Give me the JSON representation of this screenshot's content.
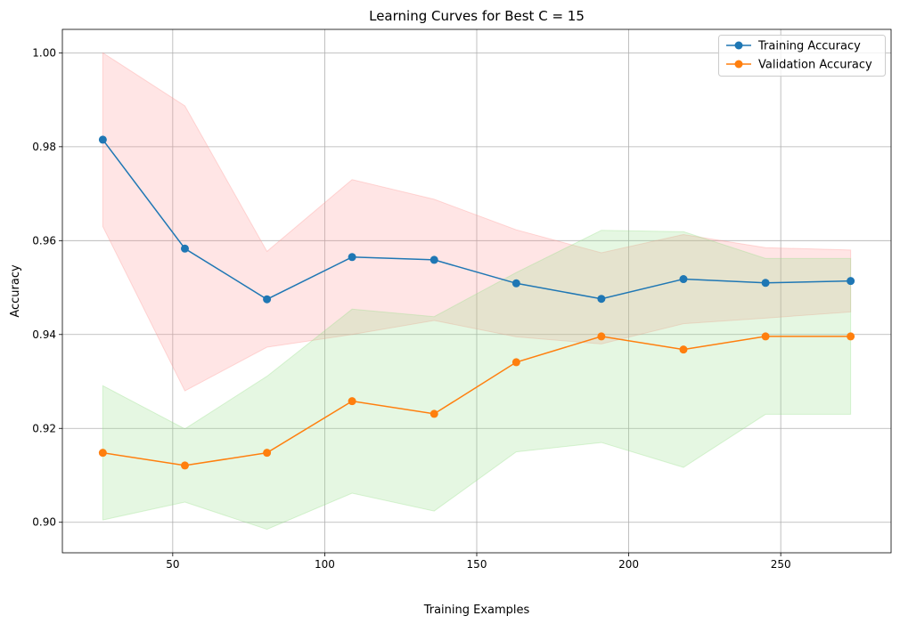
{
  "chart_data": {
    "type": "line",
    "title": "Learning Curves for Best C = 15",
    "xlabel": "Training Examples",
    "ylabel": "Accuracy",
    "xlim": [
      13.7,
      286.3
    ],
    "ylim": [
      0.8935,
      1.005
    ],
    "xticks": [
      50,
      100,
      150,
      200,
      250
    ],
    "xtick_labels": [
      "50",
      "100",
      "150",
      "200",
      "250"
    ],
    "yticks": [
      0.9,
      0.92,
      0.94,
      0.96,
      0.98,
      1.0
    ],
    "ytick_labels": [
      "0.90",
      "0.92",
      "0.94",
      "0.96",
      "0.98",
      "1.00"
    ],
    "grid": true,
    "legend_position": "top-right",
    "x": [
      27,
      54,
      81,
      109,
      136,
      163,
      191,
      218,
      245,
      273
    ],
    "series": [
      {
        "name": "Training Accuracy",
        "color": "#1f77b4",
        "values": [
          0.9815,
          0.9583,
          0.9475,
          0.9565,
          0.9559,
          0.9509,
          0.9476,
          0.9518,
          0.951,
          0.9514
        ],
        "band_color": "#ff9896",
        "band_lower": [
          0.963,
          0.928,
          0.9373,
          0.94,
          0.943,
          0.9395,
          0.938,
          0.9423,
          0.9435,
          0.9448
        ],
        "band_upper": [
          1.0,
          0.9887,
          0.9577,
          0.973,
          0.9688,
          0.9623,
          0.9574,
          0.9613,
          0.9585,
          0.958
        ]
      },
      {
        "name": "Validation Accuracy",
        "color": "#ff7f0e",
        "values": [
          0.9148,
          0.9121,
          0.9148,
          0.9258,
          0.9231,
          0.9341,
          0.9396,
          0.9368,
          0.9396,
          0.9396
        ],
        "band_color": "#98df8a",
        "band_lower": [
          0.9005,
          0.9043,
          0.8985,
          0.9062,
          0.9024,
          0.915,
          0.917,
          0.9117,
          0.923,
          0.923
        ],
        "band_upper": [
          0.9291,
          0.9199,
          0.9311,
          0.9454,
          0.9438,
          0.9532,
          0.9622,
          0.9619,
          0.9562,
          0.9562
        ]
      }
    ]
  }
}
